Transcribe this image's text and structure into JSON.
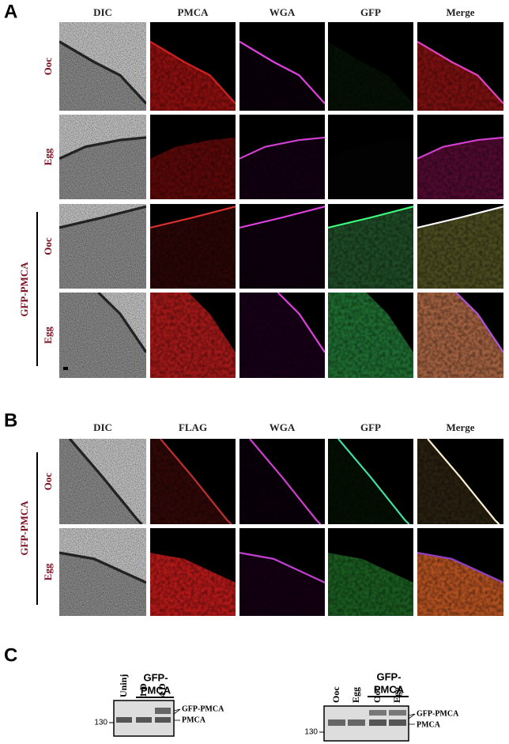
{
  "panel_a": {
    "label": "A",
    "columns": [
      "DIC",
      "PMCA",
      "WGA",
      "GFP",
      "Merge"
    ],
    "rows": [
      "Ooc",
      "Egg",
      "Ooc",
      "Egg"
    ],
    "group_label": "GFP-PMCA"
  },
  "panel_b": {
    "label": "B",
    "columns": [
      "DIC",
      "FLAG",
      "WGA",
      "GFP",
      "Merge"
    ],
    "rows": [
      "Ooc",
      "Egg"
    ],
    "group_label": "GFP-PMCA"
  },
  "panel_c": {
    "label": "C",
    "left_blot": {
      "group_label_line1": "GFP-",
      "group_label_line2": "PMCA",
      "lanes": [
        "Uninj",
        "1 D",
        "4 D"
      ],
      "bands": [
        "GFP-PMCA",
        "PMCA"
      ],
      "marker": "130"
    },
    "right_blot": {
      "group_label_line1": "GFP-",
      "group_label_line2": "PMCA",
      "lanes": [
        "Ooc",
        "Egg",
        "Ooc",
        "Egg"
      ],
      "bands": [
        "GFP-PMCA",
        "PMCA"
      ],
      "marker": "130"
    }
  }
}
